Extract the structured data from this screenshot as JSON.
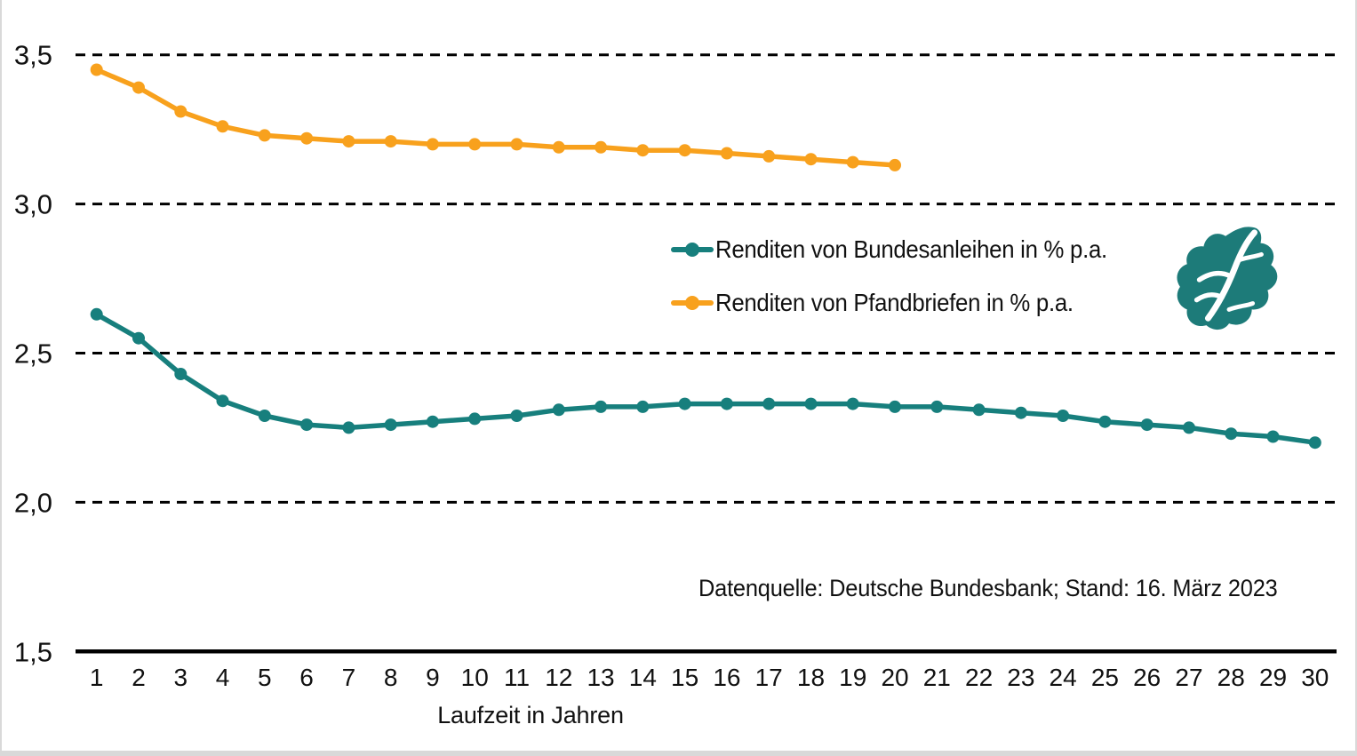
{
  "chart_data": {
    "type": "line",
    "title": "",
    "xlabel": "Laufzeit in Jahren",
    "ylabel": "",
    "x": [
      1,
      2,
      3,
      4,
      5,
      6,
      7,
      8,
      9,
      10,
      11,
      12,
      13,
      14,
      15,
      16,
      17,
      18,
      19,
      20,
      21,
      22,
      23,
      24,
      25,
      26,
      27,
      28,
      29,
      30
    ],
    "series": [
      {
        "name": "Renditen von Bundesanleihen in % p.a.",
        "color": "#177F7D",
        "values": [
          2.63,
          2.55,
          2.43,
          2.34,
          2.29,
          2.26,
          2.25,
          2.26,
          2.27,
          2.28,
          2.29,
          2.31,
          2.32,
          2.32,
          2.33,
          2.33,
          2.33,
          2.33,
          2.33,
          2.32,
          2.32,
          2.31,
          2.3,
          2.29,
          2.27,
          2.26,
          2.25,
          2.23,
          2.22,
          2.2
        ]
      },
      {
        "name": "Renditen von Pfandbriefen in % p.a.",
        "color": "#F8A11D",
        "values": [
          3.45,
          3.39,
          3.31,
          3.26,
          3.23,
          3.22,
          3.21,
          3.21,
          3.2,
          3.2,
          3.2,
          3.19,
          3.19,
          3.18,
          3.18,
          3.17,
          3.16,
          3.15,
          3.14,
          3.13
        ]
      }
    ],
    "ylim": [
      1.5,
      3.5
    ],
    "yticks": [
      3.5,
      3.0,
      2.5,
      2.0,
      1.5
    ],
    "ytick_labels": [
      "3,5",
      "3,0",
      "2,5",
      "2,0",
      "1,5"
    ],
    "xtick_labels": [
      "1",
      "2",
      "3",
      "4",
      "5",
      "6",
      "7",
      "8",
      "9",
      "10",
      "11",
      "12",
      "13",
      "14",
      "15",
      "16",
      "17",
      "18",
      "19",
      "20",
      "21",
      "22",
      "23",
      "24",
      "25",
      "26",
      "27",
      "28",
      "29",
      "30"
    ],
    "grid": "horizontal-dashed",
    "legend_position": "center-right"
  },
  "legend": {
    "items": [
      {
        "label": "Renditen von Bundesanleihen in % p.a.",
        "color": "#177F7D"
      },
      {
        "label": "Renditen von Pfandbriefen in % p.a.",
        "color": "#F8A11D"
      }
    ]
  },
  "source_note": "Datenquelle: Deutsche Bundesbank; Stand: 16. März 2023",
  "logo": {
    "name": "finanztip-leaf-logo",
    "color": "#1D7B79"
  },
  "colors": {
    "axis": "#000000",
    "gridline": "#000000",
    "text": "#111111",
    "frame_border": "#d9d9d9",
    "background": "#ffffff"
  }
}
